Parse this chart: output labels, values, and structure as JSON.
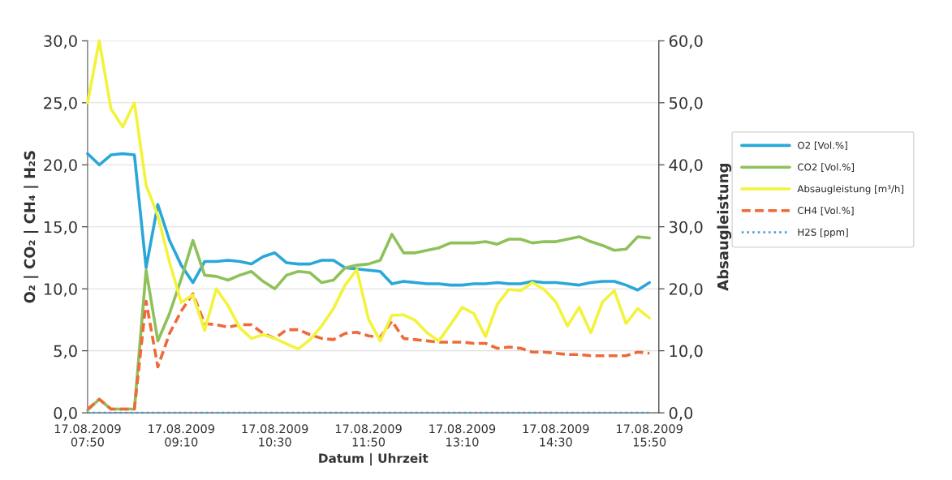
{
  "chart_data": {
    "type": "line",
    "xlabel": "Datum | Uhrzeit",
    "ylabel": "O₂ | CO₂ | CH₄ | H₂S",
    "y2label": "Absaugleistung",
    "x": [
      "2009-08-17T07:50",
      "2009-08-17T08:00",
      "2009-08-17T08:10",
      "2009-08-17T08:20",
      "2009-08-17T08:30",
      "2009-08-17T08:40",
      "2009-08-17T08:50",
      "2009-08-17T09:00",
      "2009-08-17T09:10",
      "2009-08-17T09:20",
      "2009-08-17T09:30",
      "2009-08-17T09:40",
      "2009-08-17T09:50",
      "2009-08-17T10:00",
      "2009-08-17T10:10",
      "2009-08-17T10:20",
      "2009-08-17T10:30",
      "2009-08-17T10:40",
      "2009-08-17T10:50",
      "2009-08-17T11:00",
      "2009-08-17T11:10",
      "2009-08-17T11:20",
      "2009-08-17T11:30",
      "2009-08-17T11:40",
      "2009-08-17T11:50",
      "2009-08-17T12:00",
      "2009-08-17T12:10",
      "2009-08-17T12:20",
      "2009-08-17T12:30",
      "2009-08-17T12:40",
      "2009-08-17T12:50",
      "2009-08-17T13:00",
      "2009-08-17T13:10",
      "2009-08-17T13:20",
      "2009-08-17T13:30",
      "2009-08-17T13:40",
      "2009-08-17T13:50",
      "2009-08-17T14:00",
      "2009-08-17T14:10",
      "2009-08-17T14:20",
      "2009-08-17T14:30",
      "2009-08-17T14:40",
      "2009-08-17T14:50",
      "2009-08-17T15:00",
      "2009-08-17T15:10",
      "2009-08-17T15:20",
      "2009-08-17T15:30",
      "2009-08-17T15:40",
      "2009-08-17T15:50"
    ],
    "xlim": [
      "2009-08-17T07:50",
      "2009-08-17T15:58"
    ],
    "xticks": [
      {
        "value": "2009-08-17T07:50",
        "label": "17.08.2009\n07:50"
      },
      {
        "value": "2009-08-17T09:10",
        "label": "17.08.2009\n09:10"
      },
      {
        "value": "2009-08-17T10:30",
        "label": "17.08.2009\n10:30"
      },
      {
        "value": "2009-08-17T11:50",
        "label": "17.08.2009\n11:50"
      },
      {
        "value": "2009-08-17T13:10",
        "label": "17.08.2009\n13:10"
      },
      {
        "value": "2009-08-17T14:30",
        "label": "17.08.2009\n14:30"
      },
      {
        "value": "2009-08-17T15:50",
        "label": "17.08.2009\n15:50"
      }
    ],
    "ylim": [
      0,
      30
    ],
    "yticks": [
      {
        "value": 0,
        "label": "0,0"
      },
      {
        "value": 5,
        "label": "5,0"
      },
      {
        "value": 10,
        "label": "10,0"
      },
      {
        "value": 15,
        "label": "15,0"
      },
      {
        "value": 20,
        "label": "20,0"
      },
      {
        "value": 25,
        "label": "25,0"
      },
      {
        "value": 30,
        "label": "30,0"
      }
    ],
    "y2lim": [
      0,
      60
    ],
    "y2ticks": [
      {
        "value": 0,
        "label": "0,0"
      },
      {
        "value": 10,
        "label": "10,0"
      },
      {
        "value": 20,
        "label": "20,0"
      },
      {
        "value": 30,
        "label": "30,0"
      },
      {
        "value": 40,
        "label": "40,0"
      },
      {
        "value": 50,
        "label": "50,0"
      },
      {
        "value": 60,
        "label": "60,0"
      }
    ],
    "grid": "y",
    "legend": "right",
    "series": [
      {
        "name": "O2 [Vol.%]",
        "color": "#2aa7d9",
        "line_style": "solid",
        "values": [
          20.9,
          20.0,
          20.8,
          20.9,
          20.8,
          11.7,
          16.8,
          13.9,
          11.9,
          10.5,
          12.2,
          12.2,
          12.3,
          12.2,
          12.0,
          12.6,
          12.9,
          12.1,
          12.0,
          12.0,
          12.3,
          12.3,
          11.7,
          11.6,
          11.5,
          11.4,
          10.4,
          10.6,
          10.5,
          10.4,
          10.4,
          10.3,
          10.3,
          10.4,
          10.4,
          10.5,
          10.4,
          10.4,
          10.6,
          10.5,
          10.5,
          10.4,
          10.3,
          10.5,
          10.6,
          10.6,
          10.3,
          9.9,
          10.5
        ]
      },
      {
        "name": "CO2 [Vol.%]",
        "color": "#8fc15a",
        "line_style": "solid",
        "values": [
          0.2,
          1.1,
          0.3,
          0.3,
          0.3,
          11.5,
          5.8,
          8.0,
          10.8,
          13.9,
          11.1,
          11.0,
          10.7,
          11.1,
          11.4,
          10.6,
          10.0,
          11.1,
          11.4,
          11.3,
          10.5,
          10.7,
          11.7,
          11.9,
          12.0,
          12.3,
          14.4,
          12.9,
          12.9,
          13.1,
          13.3,
          13.7,
          13.7,
          13.7,
          13.8,
          13.6,
          14.0,
          14.0,
          13.7,
          13.8,
          13.8,
          14.0,
          14.2,
          13.8,
          13.5,
          13.1,
          13.2,
          14.2,
          14.1
        ]
      },
      {
        "name": "Absaugleistung [m³/h]",
        "color": "#f3f33c",
        "line_style": "solid",
        "axis": "y2",
        "values": [
          50.0,
          60.0,
          49.0,
          46.1,
          50.0,
          36.7,
          31.8,
          24.3,
          17.8,
          19.0,
          13.3,
          20.0,
          17.3,
          13.7,
          12.0,
          12.6,
          12.0,
          11.1,
          10.3,
          11.8,
          14.0,
          16.8,
          20.6,
          23.1,
          15.1,
          11.6,
          15.7,
          15.8,
          14.9,
          12.9,
          11.6,
          14.2,
          17.0,
          16.0,
          12.3,
          17.5,
          19.9,
          19.7,
          21.0,
          19.9,
          17.9,
          14.0,
          17.0,
          12.9,
          17.9,
          19.7,
          14.4,
          16.8,
          15.3
        ]
      },
      {
        "name": "CH4 [Vol.%]",
        "color": "#ef6a3a",
        "line_style": "dashed",
        "values": [
          0.3,
          1.1,
          0.3,
          0.3,
          0.3,
          9.0,
          3.7,
          6.4,
          8.2,
          9.6,
          7.2,
          7.1,
          6.9,
          7.1,
          7.1,
          6.4,
          6.0,
          6.7,
          6.7,
          6.3,
          6.0,
          5.9,
          6.4,
          6.5,
          6.2,
          6.1,
          7.4,
          6.0,
          5.9,
          5.8,
          5.7,
          5.7,
          5.7,
          5.6,
          5.6,
          5.2,
          5.3,
          5.2,
          4.9,
          4.9,
          4.8,
          4.7,
          4.7,
          4.6,
          4.6,
          4.6,
          4.6,
          4.9,
          4.8
        ]
      },
      {
        "name": "H2S [ppm]",
        "color": "#3b9fd1",
        "line_style": "dotted",
        "values": [
          0,
          0,
          0,
          0,
          0,
          0,
          0,
          0,
          0,
          0,
          0,
          0,
          0,
          0,
          0,
          0,
          0,
          0,
          0,
          0,
          0,
          0,
          0,
          0,
          0,
          0,
          0,
          0,
          0,
          0,
          0,
          0,
          0,
          0,
          0,
          0,
          0,
          0,
          0,
          0,
          0,
          0,
          0,
          0,
          0,
          0,
          0,
          0,
          0
        ]
      }
    ]
  }
}
